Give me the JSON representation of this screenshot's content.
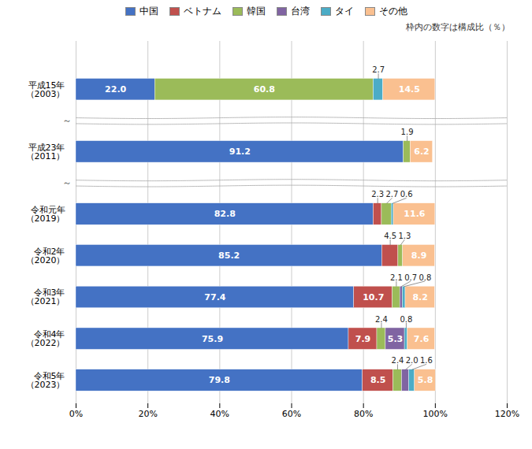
{
  "chart_data": {
    "type": "bar",
    "orientation": "horizontal",
    "stacked": true,
    "subtitle": "枠内の数字は構成比（％）",
    "categories": [
      "平成15年\n（2003）",
      "平成23年\n（2011）",
      "令和元年\n（2019）",
      "令和2年\n（2020）",
      "令和3年\n（2021）",
      "令和4年\n（2022）",
      "令和5年\n（2023）"
    ],
    "series": [
      {
        "name": "中国",
        "color": "#4472C4",
        "values": [
          22.0,
          91.2,
          82.8,
          85.2,
          77.4,
          75.9,
          79.8
        ],
        "value_labels": [
          "22.0",
          "91.2",
          "82.8",
          "85.2",
          "77.4",
          "75.9",
          "79.8"
        ]
      },
      {
        "name": "ベトナム",
        "color": "#C0504D",
        "values": [
          0.0,
          0.0,
          2.3,
          4.5,
          10.7,
          7.9,
          8.5
        ],
        "value_labels": [
          null,
          null,
          "2.3",
          "4.5",
          "10.7",
          "7.9",
          "8.5"
        ]
      },
      {
        "name": "韓国",
        "color": "#9BBB59",
        "values": [
          60.8,
          1.9,
          2.7,
          1.3,
          2.1,
          2.4,
          2.4
        ],
        "value_labels": [
          "60.8",
          "1.9",
          "2.7",
          "1.3",
          "2.1",
          "2.4",
          "2.4"
        ]
      },
      {
        "name": "台湾",
        "color": "#8064A2",
        "values": [
          0.0,
          0.0,
          0.0,
          0.0,
          0.7,
          5.3,
          2.0
        ],
        "value_labels": [
          null,
          null,
          null,
          null,
          "0.7",
          "5.3",
          "2.0"
        ]
      },
      {
        "name": "タイ",
        "color": "#4BACC6",
        "values": [
          2.7,
          0.0,
          0.6,
          0.0,
          0.8,
          0.8,
          1.6
        ],
        "value_labels": [
          "2.7",
          null,
          "0.6",
          null,
          "0.8",
          "0.8",
          "1.6"
        ]
      },
      {
        "name": "その他",
        "color": "#FAC090",
        "values": [
          14.5,
          6.2,
          11.6,
          8.9,
          8.2,
          7.6,
          5.8
        ],
        "value_labels": [
          "14.5",
          "6.2",
          "11.6",
          "8.9",
          "8.2",
          "7.6",
          "5.8"
        ]
      }
    ],
    "xlim": [
      0,
      120
    ],
    "xticks": [
      {
        "value": 0,
        "label": "0%"
      },
      {
        "value": 20,
        "label": "20%"
      },
      {
        "value": 40,
        "label": "40%"
      },
      {
        "value": 60,
        "label": "60%"
      },
      {
        "value": 80,
        "label": "80%"
      },
      {
        "value": 100,
        "label": "100%"
      },
      {
        "value": 120,
        "label": "120%"
      }
    ],
    "grid": true,
    "legend": "top",
    "data_labels": true,
    "annotations": [
      "～",
      "～"
    ]
  }
}
